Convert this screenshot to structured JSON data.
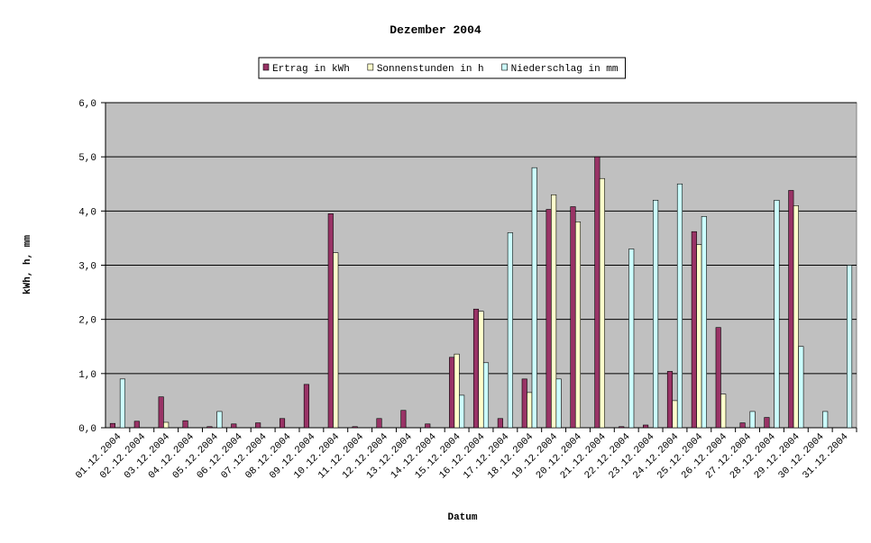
{
  "chart_data": {
    "type": "bar",
    "title": "Dezember 2004",
    "x_label": "Datum",
    "y_label": "kWh, h, mm",
    "categories": [
      "01.12.2004",
      "02.12.2004",
      "03.12.2004",
      "04.12.2004",
      "05.12.2004",
      "06.12.2004",
      "07.12.2004",
      "08.12.2004",
      "09.12.2004",
      "10.12.2004",
      "11.12.2004",
      "12.12.2004",
      "13.12.2004",
      "14.12.2004",
      "15.12.2004",
      "16.12.2004",
      "17.12.2004",
      "18.12.2004",
      "19.12.2004",
      "20.12.2004",
      "21.12.2004",
      "22.12.2004",
      "23.12.2004",
      "24.12.2004",
      "25.12.2004",
      "26.12.2004",
      "27.12.2004",
      "28.12.2004",
      "29.12.2004",
      "30.12.2004",
      "31.12.2004"
    ],
    "series": [
      {
        "name": "Ertrag in kWh",
        "color": "#993366",
        "values": [
          0.08,
          0.12,
          0.57,
          0.13,
          0.02,
          0.07,
          0.09,
          0.17,
          0.8,
          3.95,
          0.02,
          0.17,
          0.32,
          0.07,
          1.3,
          2.19,
          0.17,
          0.9,
          4.03,
          4.08,
          5.0,
          0.02,
          0.05,
          1.04,
          3.62,
          1.85,
          0.09,
          0.19,
          4.38,
          0,
          0
        ]
      },
      {
        "name": "Sonnenstunden in h",
        "color": "#ffffcc",
        "values": [
          0,
          0,
          0.1,
          0,
          0,
          0,
          0,
          0,
          0,
          3.23,
          0,
          0,
          0,
          0,
          1.36,
          2.15,
          0,
          0.65,
          4.3,
          3.8,
          4.6,
          0,
          0,
          0.5,
          3.38,
          0.62,
          0,
          0,
          4.1,
          0,
          0
        ]
      },
      {
        "name": "Niederschlag in mm",
        "color": "#ccffff",
        "values": [
          0.9,
          0,
          0,
          0,
          0.3,
          0,
          0,
          0,
          0,
          0,
          0,
          0,
          0,
          0,
          0.6,
          1.2,
          3.6,
          4.8,
          0.9,
          0,
          0,
          3.3,
          4.2,
          4.5,
          3.9,
          0,
          0.3,
          4.2,
          1.5,
          0.3,
          3.0
        ]
      }
    ],
    "ylim": [
      0,
      6
    ],
    "yticks": [
      {
        "value": 0,
        "label": "0,0"
      },
      {
        "value": 1,
        "label": "1,0"
      },
      {
        "value": 2,
        "label": "2,0"
      },
      {
        "value": 3,
        "label": "3,0"
      },
      {
        "value": 4,
        "label": "4,0"
      },
      {
        "value": 5,
        "label": "5,0"
      },
      {
        "value": 6,
        "label": "6,0"
      }
    ],
    "grid": true,
    "plot_background": "#c0c0c0",
    "legend": "top"
  }
}
